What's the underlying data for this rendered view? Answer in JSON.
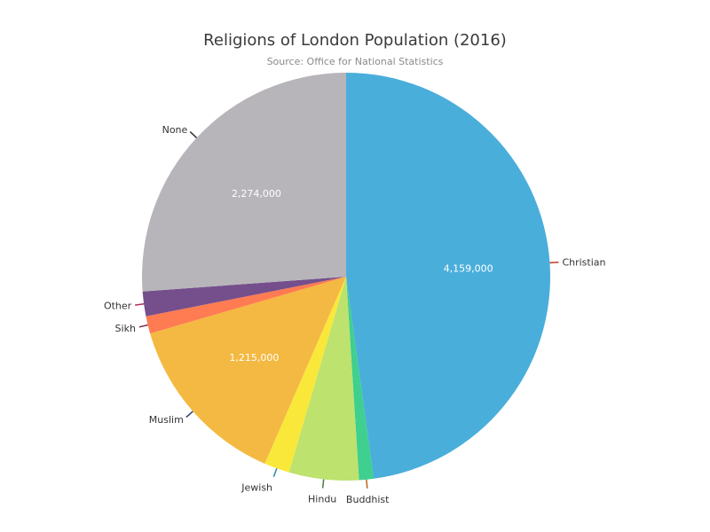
{
  "chart_data": {
    "type": "pie",
    "title": "Religions of London Population (2016)",
    "subtitle": "Source: Office for National Statistics",
    "slices": [
      {
        "label": "Christian",
        "value": 4159000,
        "value_label": "4,159,000",
        "color": "#4aaedb",
        "leader": "#c0392b"
      },
      {
        "label": "Buddhist",
        "value": 100000,
        "value_label": "",
        "color": "#3fcf8f",
        "leader": "#b5651d"
      },
      {
        "label": "Hindu",
        "value": 480000,
        "value_label": "",
        "color": "#bde26e",
        "leader": "#4a7a3a"
      },
      {
        "label": "Jewish",
        "value": 175000,
        "value_label": "",
        "color": "#f9e83a",
        "leader": "#2e86ab"
      },
      {
        "label": "Muslim",
        "value": 1215000,
        "value_label": "1,215,000",
        "color": "#f4b942",
        "leader": "#2c3e70"
      },
      {
        "label": "Sikh",
        "value": 120000,
        "value_label": "",
        "color": "#ff7b52",
        "leader": "#7b2d4a"
      },
      {
        "label": "Other",
        "value": 170000,
        "value_label": "",
        "color": "#754f8c",
        "leader": "#b03050"
      },
      {
        "label": "None",
        "value": 2274000,
        "value_label": "2,274,000",
        "color": "#b7b5ba",
        "leader": "#333333"
      }
    ]
  }
}
